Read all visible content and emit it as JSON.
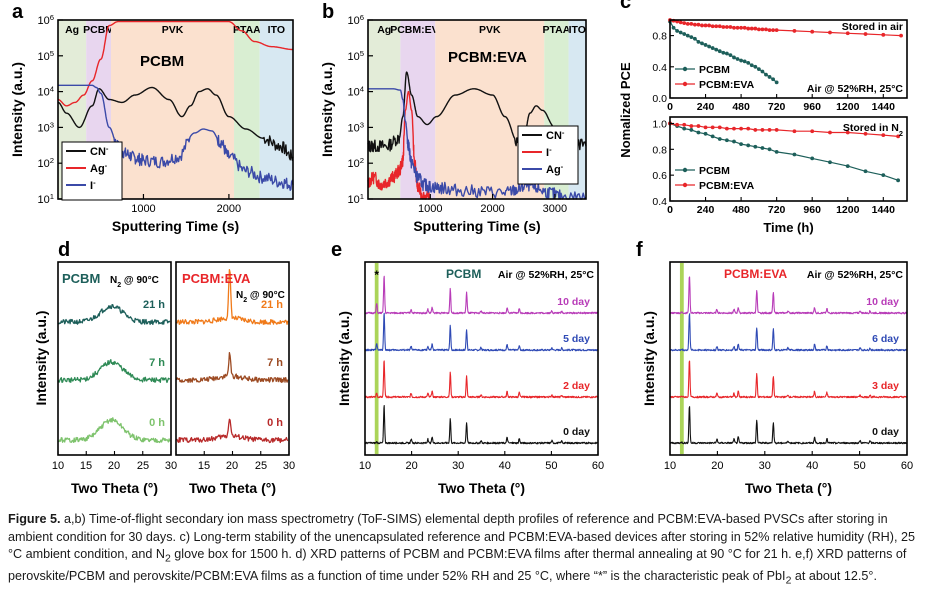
{
  "panels": {
    "a": {
      "letter": "a",
      "title": "PCBM",
      "xlabel": "Sputtering Time (s)",
      "ylabel": "Intensity (a.u.)",
      "regions": [
        "Ag",
        "PCBM",
        "PVK",
        "PTAA",
        "ITO"
      ],
      "legend": [
        "CN",
        "Ag",
        "I"
      ]
    },
    "b": {
      "letter": "b",
      "title": "PCBM:EVA",
      "xlabel": "Sputtering Time (s)",
      "ylabel": "Intensity (a.u.)",
      "regions": [
        "Ag",
        "PCBM:EVA",
        "PVK",
        "PTAA",
        "ITO"
      ],
      "legend": [
        "CN",
        "I",
        "Ag"
      ]
    },
    "c": {
      "letter": "c",
      "ylabel": "Nomalized PCE",
      "xlabel": "Time (h)",
      "top_title": "Stored in air",
      "top_condition": "Air @ 52%RH, 25°C",
      "bottom_title_prefix": "Stored in N",
      "bottom_title_sub": "2",
      "legend": [
        "PCBM",
        "PCBM:EVA"
      ]
    },
    "d": {
      "letter": "d",
      "ylabel": "Intensity (a.u.)",
      "xlabel": "Two Theta (°)",
      "left_title": "PCBM",
      "left_cond_prefix": "N",
      "left_cond_sub": "2",
      "left_cond_suffix": " @ 90°C",
      "right_title": "PCBM:EVA",
      "right_cond_prefix": "N",
      "right_cond_sub": "2",
      "right_cond_suffix": " @ 90°C",
      "labels": [
        "21 h",
        "7 h",
        "0 h"
      ]
    },
    "e": {
      "letter": "e",
      "ylabel": "Intensity (a.u.)",
      "xlabel": "Two Theta (°)",
      "title": "PCBM",
      "condition": "Air @ 52%RH, 25°C",
      "star": "*",
      "labels": [
        "10 day",
        "5 day",
        "2 day",
        "0 day"
      ]
    },
    "f": {
      "letter": "f",
      "ylabel": "Intensity (a.u.)",
      "xlabel": "Two Theta (°)",
      "title": "PCBM:EVA",
      "condition": "Air @ 52%RH, 25°C",
      "labels": [
        "10 day",
        "6 day",
        "3 day",
        "0 day"
      ]
    }
  },
  "colors": {
    "black": "#111111",
    "red": "#e8262a",
    "blue": "#3b4aa8",
    "teal": "#1d5f5a",
    "green_d": "#2e8a55",
    "light_green": "#7ec36d",
    "orange": "#f07a1a",
    "brown": "#9c4a22",
    "dark_red": "#b82a2a",
    "magenta": "#b83cb8",
    "royal": "#2f4ab5",
    "pbi2": "#9ccc3c"
  },
  "caption": {
    "figure_label": "Figure 5.",
    "text1": " a,b) Time-of-flight secondary ion mass spectrometry (ToF-SIMS) elemental depth profiles of reference and PCBM:EVA-based PVSCs after storing in ambient condition for 30 days. c) Long-term stability of the unencapsulated reference and PCBM:EVA-based devices after storing in 52% relative humidity (RH), 25 °C ambient condition, and N",
    "sub1": "2",
    "text2": " glove box for 1500 h. d) XRD patterns of PCBM and PCBM:EVA films after thermal annealing at 90 °C for 21 h. e,f) XRD patterns of perovskite/PCBM and perovskite/PCBM:EVA films as a function of time under 52% RH and 25 °C, where “*” is the characteristic peak of PbI",
    "sub2": "2",
    "text3": " at about 12.5°."
  },
  "chart_data": [
    {
      "panel": "a",
      "type": "line",
      "title": "PCBM",
      "xlabel": "Sputtering Time (s)",
      "ylabel": "Intensity (a.u.)",
      "yscale": "log",
      "xlim": [
        0,
        2750
      ],
      "ylim": [
        10,
        1000000
      ],
      "x_ticks": [
        1000,
        2000
      ],
      "y_ticks": [
        "10^1",
        "10^2",
        "10^3",
        "10^4",
        "10^5",
        "10^6"
      ],
      "regions": [
        {
          "name": "Ag",
          "from": 0,
          "to": 330
        },
        {
          "name": "PCBM",
          "from": 330,
          "to": 620
        },
        {
          "name": "PVK",
          "from": 620,
          "to": 2060
        },
        {
          "name": "PTAA",
          "from": 2060,
          "to": 2360
        },
        {
          "name": "ITO",
          "from": 2360,
          "to": 2750
        }
      ],
      "series": [
        {
          "name": "CN",
          "color": "black",
          "x": [
            0,
            100,
            250,
            400,
            480,
            600,
            750,
            900,
            1100,
            1300,
            1450,
            1550,
            1650,
            1750,
            1850,
            2000,
            2200,
            2400,
            2600,
            2750
          ],
          "y": [
            5000,
            2500,
            1000,
            4000,
            12000,
            6000,
            5000,
            8000,
            13000,
            6000,
            2000,
            4000,
            10000,
            12000,
            8000,
            2000,
            900,
            500,
            300,
            150
          ]
        },
        {
          "name": "Ag",
          "color": "red",
          "x": [
            0,
            100,
            200,
            300,
            400,
            500,
            600,
            700,
            1000,
            1500,
            2000,
            2150,
            2300,
            2500,
            2750
          ],
          "y": [
            6000,
            4000,
            5000,
            8000,
            20000,
            80000,
            700000,
            900000,
            900000,
            900000,
            900000,
            500000,
            250000,
            180000,
            150000
          ]
        },
        {
          "name": "I",
          "color": "blue",
          "x": [
            0,
            200,
            400,
            450,
            500,
            600,
            700,
            800,
            900,
            1000,
            1200,
            1400,
            1600,
            1700,
            1800,
            1900,
            2000,
            2200,
            2400,
            2600,
            2750
          ],
          "y": [
            15000,
            15000,
            15000,
            13000,
            9000,
            1000,
            300,
            180,
            140,
            120,
            110,
            150,
            700,
            900,
            800,
            400,
            150,
            60,
            40,
            30,
            25
          ]
        }
      ]
    },
    {
      "panel": "b",
      "type": "line",
      "title": "PCBM:EVA",
      "xlabel": "Sputtering Time (s)",
      "ylabel": "Intensity (a.u.)",
      "yscale": "log",
      "xlim": [
        0,
        3500
      ],
      "ylim": [
        10,
        1000000
      ],
      "x_ticks": [
        1000,
        2000,
        3000
      ],
      "y_ticks": [
        "10^1",
        "10^2",
        "10^3",
        "10^4",
        "10^5",
        "10^6"
      ],
      "regions": [
        {
          "name": "Ag",
          "from": 0,
          "to": 520
        },
        {
          "name": "PCBM:EVA",
          "from": 520,
          "to": 1080
        },
        {
          "name": "PVK",
          "from": 1080,
          "to": 2830
        },
        {
          "name": "PTAA",
          "from": 2830,
          "to": 3220
        },
        {
          "name": "ITO",
          "from": 3220,
          "to": 3500
        }
      ],
      "series": [
        {
          "name": "CN",
          "color": "black",
          "x": [
            0,
            100,
            300,
            500,
            560,
            620,
            700,
            800,
            950,
            1100,
            1400,
            1700,
            2000,
            2200,
            2400,
            2500,
            2600,
            2700,
            2800,
            3000,
            3200,
            3500
          ],
          "y": [
            300,
            300,
            300,
            500,
            2000,
            35000,
            8000,
            2000,
            1200,
            2000,
            8000,
            12000,
            8000,
            2000,
            400,
            500,
            2500,
            4000,
            3000,
            1000,
            600,
            300
          ]
        },
        {
          "name": "I",
          "color": "red",
          "x": [
            0,
            100,
            200,
            300,
            400,
            500,
            560,
            600,
            650,
            700,
            750,
            800,
            900,
            1000
          ],
          "y": [
            30,
            40,
            25,
            30,
            40,
            60,
            120,
            3000,
            10000,
            3000,
            100,
            20,
            12,
            10
          ]
        },
        {
          "name": "Ag",
          "color": "blue",
          "x": [
            0,
            200,
            400,
            520,
            560,
            600,
            650,
            700,
            800,
            900,
            1000,
            1200,
            1400,
            1800,
            2200,
            2400,
            2550,
            2700,
            2900,
            3100,
            3500
          ],
          "y": [
            12000,
            12000,
            12000,
            11000,
            6000,
            1500,
            300,
            100,
            40,
            25,
            22,
            20,
            18,
            16,
            15,
            18,
            25,
            20,
            15,
            12,
            11
          ]
        }
      ]
    },
    {
      "panel": "c-top",
      "type": "line",
      "title": "Stored in air",
      "xlabel": "",
      "ylabel": "Nomalized PCE",
      "xlim": [
        0,
        1600
      ],
      "ylim": [
        0,
        1.0
      ],
      "x_ticks": [
        0,
        240,
        480,
        720,
        960,
        1200,
        1440
      ],
      "y_ticks": [
        0.0,
        0.4,
        0.8
      ],
      "series": [
        {
          "name": "PCBM",
          "color": "teal",
          "x": [
            0,
            24,
            48,
            72,
            96,
            120,
            144,
            168,
            192,
            216,
            240,
            264,
            288,
            312,
            336,
            360,
            384,
            408,
            432,
            456,
            480,
            504,
            528,
            552,
            576,
            600,
            624,
            648,
            672,
            696,
            720
          ],
          "y": [
            0.98,
            0.9,
            0.86,
            0.84,
            0.82,
            0.8,
            0.78,
            0.76,
            0.72,
            0.7,
            0.68,
            0.66,
            0.64,
            0.62,
            0.6,
            0.58,
            0.57,
            0.55,
            0.52,
            0.5,
            0.48,
            0.47,
            0.45,
            0.42,
            0.4,
            0.37,
            0.34,
            0.3,
            0.27,
            0.24,
            0.2
          ]
        },
        {
          "name": "PCBM:EVA",
          "color": "red",
          "x": [
            0,
            24,
            48,
            72,
            96,
            120,
            144,
            168,
            192,
            216,
            240,
            264,
            288,
            312,
            336,
            360,
            384,
            408,
            432,
            456,
            480,
            504,
            528,
            552,
            576,
            600,
            624,
            648,
            672,
            696,
            720,
            840,
            960,
            1080,
            1200,
            1320,
            1440,
            1560
          ],
          "y": [
            1.0,
            0.99,
            0.98,
            0.97,
            0.96,
            0.95,
            0.95,
            0.94,
            0.94,
            0.93,
            0.93,
            0.93,
            0.92,
            0.92,
            0.92,
            0.91,
            0.91,
            0.91,
            0.9,
            0.9,
            0.9,
            0.9,
            0.89,
            0.89,
            0.89,
            0.88,
            0.88,
            0.88,
            0.87,
            0.87,
            0.87,
            0.86,
            0.85,
            0.84,
            0.83,
            0.82,
            0.81,
            0.8
          ]
        }
      ]
    },
    {
      "panel": "c-bottom",
      "type": "line",
      "title": "Stored in N2",
      "xlabel": "Time (h)",
      "ylabel": "Nomalized PCE",
      "xlim": [
        0,
        1600
      ],
      "ylim": [
        0.4,
        1.05
      ],
      "x_ticks": [
        0,
        240,
        480,
        720,
        960,
        1200,
        1440
      ],
      "y_ticks": [
        0.4,
        0.6,
        0.8,
        1.0
      ],
      "series": [
        {
          "name": "PCBM",
          "color": "teal",
          "x": [
            0,
            48,
            96,
            144,
            192,
            240,
            288,
            336,
            384,
            432,
            480,
            528,
            576,
            624,
            672,
            720,
            840,
            960,
            1080,
            1200,
            1320,
            1440,
            1540
          ],
          "y": [
            1.0,
            0.98,
            0.96,
            0.95,
            0.93,
            0.92,
            0.9,
            0.88,
            0.87,
            0.86,
            0.84,
            0.83,
            0.82,
            0.81,
            0.8,
            0.78,
            0.76,
            0.73,
            0.7,
            0.67,
            0.63,
            0.6,
            0.56
          ]
        },
        {
          "name": "PCBM:EVA",
          "color": "red",
          "x": [
            0,
            48,
            96,
            144,
            192,
            240,
            288,
            336,
            384,
            432,
            480,
            528,
            576,
            624,
            672,
            720,
            840,
            960,
            1080,
            1200,
            1320,
            1440,
            1540
          ],
          "y": [
            1.0,
            0.99,
            0.99,
            0.98,
            0.98,
            0.97,
            0.97,
            0.97,
            0.96,
            0.96,
            0.96,
            0.96,
            0.95,
            0.95,
            0.95,
            0.95,
            0.94,
            0.94,
            0.93,
            0.93,
            0.92,
            0.91,
            0.9
          ]
        }
      ]
    },
    {
      "panel": "d-left",
      "type": "line",
      "title": "PCBM",
      "xlabel": "Two Theta (°)",
      "ylabel": "Intensity (a.u.)",
      "xlim": [
        10,
        30
      ],
      "x_ticks": [
        10,
        15,
        20,
        25,
        30
      ],
      "series": [
        {
          "name": "21 h",
          "color": "teal",
          "shape": "broad",
          "center": 19.5,
          "width": 2.8,
          "height": 0.4
        },
        {
          "name": "7 h",
          "color": "green_d",
          "shape": "broad",
          "center": 19.5,
          "width": 2.8,
          "height": 0.45
        },
        {
          "name": "0 h",
          "color": "light_green",
          "shape": "broad",
          "center": 19.5,
          "width": 2.8,
          "height": 0.5
        }
      ]
    },
    {
      "panel": "d-right",
      "type": "line",
      "title": "PCBM:EVA",
      "xlabel": "Two Theta (°)",
      "ylabel": "Intensity (a.u.)",
      "xlim": [
        10,
        30
      ],
      "x_ticks": [
        10,
        15,
        20,
        25,
        30
      ],
      "series": [
        {
          "name": "21 h",
          "color": "orange",
          "shape": "sharp",
          "center": 19.5,
          "height": 1.0
        },
        {
          "name": "7 h",
          "color": "brown",
          "shape": "sharp",
          "center": 19.5,
          "height": 0.45
        },
        {
          "name": "0 h",
          "color": "dark_red",
          "shape": "sharp",
          "center": 19.5,
          "height": 0.4
        }
      ]
    },
    {
      "panel": "e",
      "type": "line",
      "title": "PCBM",
      "xlabel": "Two Theta (°)",
      "ylabel": "Intensity (a.u.)",
      "xlim": [
        10,
        60
      ],
      "x_ticks": [
        10,
        20,
        30,
        40,
        50,
        60
      ],
      "pbi2_peak": 12.5,
      "peaks": [
        {
          "x": 12.5,
          "h": 0.1
        },
        {
          "x": 14.1,
          "h": 1.0
        },
        {
          "x": 19.9,
          "h": 0.1
        },
        {
          "x": 23.5,
          "h": 0.1
        },
        {
          "x": 24.4,
          "h": 0.15
        },
        {
          "x": 28.3,
          "h": 0.65
        },
        {
          "x": 31.8,
          "h": 0.55
        },
        {
          "x": 34.9,
          "h": 0.06
        },
        {
          "x": 40.5,
          "h": 0.15
        },
        {
          "x": 43.1,
          "h": 0.12
        },
        {
          "x": 50.1,
          "h": 0.06
        },
        {
          "x": 52.2,
          "h": 0.05
        }
      ],
      "series": [
        {
          "name": "10 day",
          "color": "magenta",
          "pbi2": 0.25
        },
        {
          "name": "5 day",
          "color": "royal",
          "pbi2": 0.18
        },
        {
          "name": "2 day",
          "color": "red",
          "pbi2": 0.1
        },
        {
          "name": "0 day",
          "color": "black",
          "pbi2": 0.02
        }
      ]
    },
    {
      "panel": "f",
      "type": "line",
      "title": "PCBM:EVA",
      "xlabel": "Two Theta (°)",
      "ylabel": "Intensity (a.u.)",
      "xlim": [
        10,
        60
      ],
      "x_ticks": [
        10,
        20,
        30,
        40,
        50,
        60
      ],
      "pbi2_peak": 12.5,
      "peaks": [
        {
          "x": 14.1,
          "h": 1.0
        },
        {
          "x": 19.9,
          "h": 0.1
        },
        {
          "x": 23.5,
          "h": 0.1
        },
        {
          "x": 24.4,
          "h": 0.15
        },
        {
          "x": 28.3,
          "h": 0.6
        },
        {
          "x": 31.8,
          "h": 0.55
        },
        {
          "x": 34.9,
          "h": 0.06
        },
        {
          "x": 40.5,
          "h": 0.15
        },
        {
          "x": 43.1,
          "h": 0.12
        },
        {
          "x": 50.1,
          "h": 0.06
        },
        {
          "x": 52.2,
          "h": 0.05
        }
      ],
      "series": [
        {
          "name": "10 day",
          "color": "magenta",
          "pbi2": 0.02
        },
        {
          "name": "6 day",
          "color": "royal",
          "pbi2": 0.02
        },
        {
          "name": "3 day",
          "color": "red",
          "pbi2": 0.02
        },
        {
          "name": "0 day",
          "color": "black",
          "pbi2": 0.02
        }
      ]
    }
  ]
}
